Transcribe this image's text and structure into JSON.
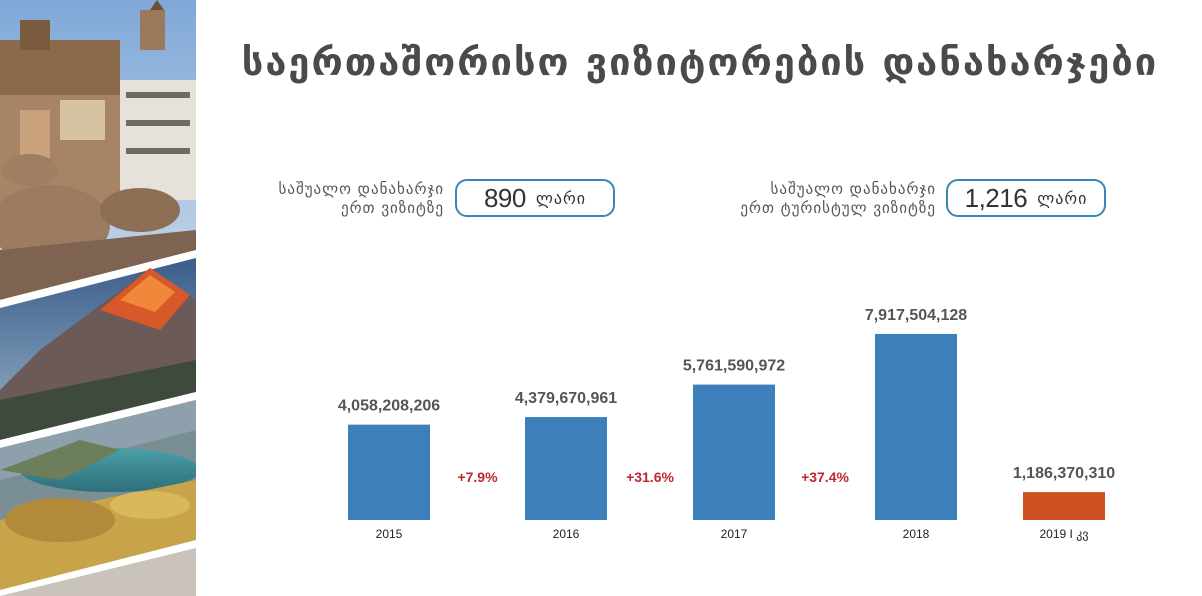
{
  "title": "საერთაშორისო ვიზიტორების დანახარჯები",
  "stats": [
    {
      "label_line1": "საშუალო დანახარჯი",
      "label_line2": "ერთ ვიზიტზე",
      "value": "890",
      "unit": "ლარი"
    },
    {
      "label_line1": "საშუალო დანახარჯი",
      "label_line2": "ერთ ტურისტულ ვიზიტზე",
      "value": "1,216",
      "unit": "ლარი"
    }
  ],
  "colors": {
    "bar": "#3c7fba",
    "bar_highlight": "#cc5020",
    "growth": "#c0262d",
    "pill_border": "#3a86b7"
  },
  "chart_data": {
    "type": "bar",
    "categories": [
      "2015",
      "2016",
      "2017",
      "2018",
      "2019 I კვ"
    ],
    "values": [
      4058208206,
      4379670961,
      5761590972,
      7917504128,
      1186370310
    ],
    "value_labels": [
      "4,058,208,206",
      "4,379,670,961",
      "5,761,590,972",
      "7,917,504,128",
      "1,186,370,310"
    ],
    "highlight_index": 4,
    "growth_labels": [
      "+7.9%",
      "+31.6%",
      "+37.4%"
    ],
    "ylim": [
      0,
      8000000000
    ]
  }
}
